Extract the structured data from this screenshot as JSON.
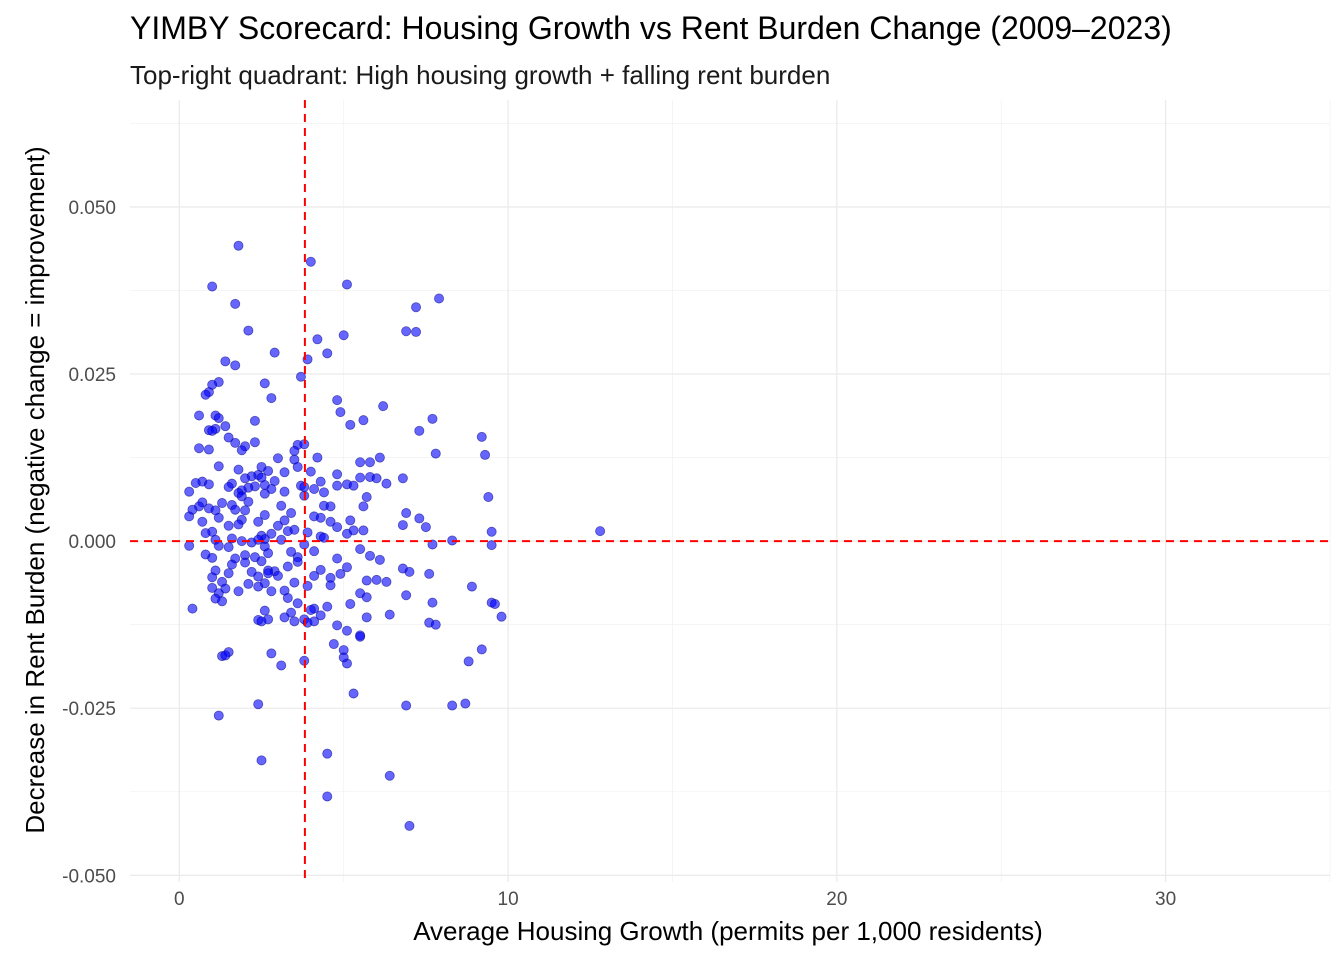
{
  "chart_data": {
    "type": "scatter",
    "title": "YIMBY Scorecard: Housing Growth vs Rent Burden Change (2009–2023)",
    "subtitle": "Top-right quadrant: High housing growth + falling rent burden",
    "xlabel": "Average Housing Growth (permits per 1,000 residents)",
    "ylabel": "Decrease in Rent Burden (negative change = improvement)",
    "xlim": [
      -1.5,
      35
    ],
    "ylim": [
      -0.051,
      0.066
    ],
    "x_ticks": [
      0,
      10,
      20,
      30
    ],
    "x_tick_labels": [
      "0",
      "10",
      "20",
      "30"
    ],
    "y_ticks": [
      -0.05,
      -0.025,
      0,
      0.025,
      0.05
    ],
    "y_tick_labels": [
      "-0.050",
      "-0.025",
      "0.000",
      "0.025",
      "0.050"
    ],
    "grid": true,
    "reference_lines": {
      "x": 3.82,
      "y": 0.0
    },
    "colors": {
      "points": "#0000ff",
      "reference_lines": "#ff0000",
      "grid": "#ebebeb"
    },
    "point_opacity": 0.6,
    "series": [
      {
        "points": [
          [
            1.8,
            0.0442
          ],
          [
            4.0,
            0.0418
          ],
          [
            1.0,
            0.0381
          ],
          [
            5.1,
            0.0384
          ],
          [
            1.7,
            0.0355
          ],
          [
            7.9,
            0.0363
          ],
          [
            7.2,
            0.035
          ],
          [
            2.1,
            0.0315
          ],
          [
            6.9,
            0.0314
          ],
          [
            7.2,
            0.0313
          ],
          [
            5.0,
            0.0308
          ],
          [
            4.2,
            0.0302
          ],
          [
            2.9,
            0.0282
          ],
          [
            4.5,
            0.0281
          ],
          [
            3.9,
            0.0272
          ],
          [
            1.4,
            0.0269
          ],
          [
            1.7,
            0.0263
          ],
          [
            3.7,
            0.0246
          ],
          [
            1.2,
            0.0238
          ],
          [
            1.0,
            0.0234
          ],
          [
            2.6,
            0.0236
          ],
          [
            0.9,
            0.0223
          ],
          [
            0.8,
            0.0219
          ],
          [
            2.8,
            0.0214
          ],
          [
            4.8,
            0.0211
          ],
          [
            6.2,
            0.0202
          ],
          [
            4.9,
            0.0193
          ],
          [
            1.1,
            0.0188
          ],
          [
            0.6,
            0.0188
          ],
          [
            7.7,
            0.0183
          ],
          [
            1.2,
            0.0184
          ],
          [
            2.3,
            0.018
          ],
          [
            5.6,
            0.0181
          ],
          [
            5.2,
            0.0174
          ],
          [
            1.4,
            0.0172
          ],
          [
            1.1,
            0.0168
          ],
          [
            0.9,
            0.0166
          ],
          [
            1.0,
            0.0165
          ],
          [
            7.3,
            0.0165
          ],
          [
            1.7,
            0.0147
          ],
          [
            9.2,
            0.0156
          ],
          [
            1.5,
            0.0155
          ],
          [
            2.0,
            0.0142
          ],
          [
            2.3,
            0.0148
          ],
          [
            3.6,
            0.0144
          ],
          [
            3.8,
            0.0145
          ],
          [
            0.6,
            0.0139
          ],
          [
            1.9,
            0.0136
          ],
          [
            0.9,
            0.0137
          ],
          [
            3.5,
            0.0135
          ],
          [
            9.3,
            0.0129
          ],
          [
            7.8,
            0.0131
          ],
          [
            4.2,
            0.0125
          ],
          [
            6.1,
            0.0125
          ],
          [
            5.5,
            0.0118
          ],
          [
            3.5,
            0.0122
          ],
          [
            3.0,
            0.0124
          ],
          [
            5.8,
            0.0118
          ],
          [
            1.2,
            0.0112
          ],
          [
            3.6,
            0.0111
          ],
          [
            2.5,
            0.0111
          ],
          [
            2.7,
            0.0105
          ],
          [
            4.0,
            0.0104
          ],
          [
            1.8,
            0.0107
          ],
          [
            3.2,
            0.0103
          ],
          [
            2.4,
            0.0099
          ],
          [
            4.8,
            0.01
          ],
          [
            2.2,
            0.0097
          ],
          [
            2.5,
            0.0095
          ],
          [
            5.8,
            0.0096
          ],
          [
            6.0,
            0.0094
          ],
          [
            6.8,
            0.0094
          ],
          [
            5.5,
            0.0095
          ],
          [
            2.0,
            0.0094
          ],
          [
            2.9,
            0.009
          ],
          [
            0.7,
            0.0089
          ],
          [
            0.5,
            0.0087
          ],
          [
            1.6,
            0.0086
          ],
          [
            0.9,
            0.0085
          ],
          [
            4.3,
            0.0089
          ],
          [
            6.3,
            0.0086
          ],
          [
            5.1,
            0.0085
          ],
          [
            3.7,
            0.0083
          ],
          [
            5.3,
            0.0083
          ],
          [
            2.6,
            0.0084
          ],
          [
            4.8,
            0.0083
          ],
          [
            3.8,
            0.0081
          ],
          [
            2.3,
            0.0082
          ],
          [
            1.5,
            0.0081
          ],
          [
            2.1,
            0.008
          ],
          [
            4.1,
            0.0078
          ],
          [
            2.8,
            0.0078
          ],
          [
            1.9,
            0.0076
          ],
          [
            1.8,
            0.0072
          ],
          [
            4.4,
            0.0073
          ],
          [
            3.2,
            0.0074
          ],
          [
            2.6,
            0.0071
          ],
          [
            0.3,
            0.0074
          ],
          [
            1.9,
            0.0067
          ],
          [
            3.8,
            0.0068
          ],
          [
            9.4,
            0.0066
          ],
          [
            5.7,
            0.0066
          ],
          [
            2.1,
            0.0059
          ],
          [
            0.7,
            0.0058
          ],
          [
            1.3,
            0.0057
          ],
          [
            1.6,
            0.0054
          ],
          [
            0.6,
            0.0052
          ],
          [
            4.4,
            0.0053
          ],
          [
            3.1,
            0.0053
          ],
          [
            4.6,
            0.0052
          ],
          [
            5.6,
            0.0052
          ],
          [
            0.9,
            0.0049
          ],
          [
            1.7,
            0.0047
          ],
          [
            0.4,
            0.0047
          ],
          [
            1.1,
            0.0046
          ],
          [
            2.0,
            0.0046
          ],
          [
            6.9,
            0.0042
          ],
          [
            3.4,
            0.0042
          ],
          [
            4.1,
            0.0037
          ],
          [
            2.6,
            0.0039
          ],
          [
            4.3,
            0.0035
          ],
          [
            1.2,
            0.0035
          ],
          [
            0.3,
            0.0037
          ],
          [
            5.2,
            0.0031
          ],
          [
            7.3,
            0.0034
          ],
          [
            3.2,
            0.0031
          ],
          [
            4.6,
            0.0029
          ],
          [
            0.7,
            0.0029
          ],
          [
            1.9,
            0.0032
          ],
          [
            2.4,
            0.0029
          ],
          [
            6.8,
            0.0024
          ],
          [
            3.0,
            0.0023
          ],
          [
            4.8,
            0.0021
          ],
          [
            7.5,
            0.0021
          ],
          [
            1.8,
            0.0025
          ],
          [
            1.5,
            0.0023
          ],
          [
            3.5,
            0.0017
          ],
          [
            5.3,
            0.0016
          ],
          [
            5.6,
            0.0016
          ],
          [
            3.3,
            0.0015
          ],
          [
            1.0,
            0.0014
          ],
          [
            5.1,
            0.0011
          ],
          [
            0.8,
            0.0012
          ],
          [
            12.8,
            0.0015
          ],
          [
            9.5,
            0.0014
          ],
          [
            3.9,
            0.0013
          ],
          [
            2.8,
            0.0011
          ],
          [
            4.3,
            0.0007
          ],
          [
            2.5,
            0.0008
          ],
          [
            4.4,
            0.0005
          ],
          [
            1.6,
            0.0004
          ],
          [
            2.6,
            0.0003
          ],
          [
            1.1,
            0.0002
          ],
          [
            8.3,
            0.0001
          ],
          [
            2.4,
            0.0002
          ],
          [
            3.1,
            0.0002
          ],
          [
            1.9,
            0.0
          ],
          [
            7.7,
            -0.0005
          ],
          [
            9.5,
            -0.0006
          ],
          [
            0.3,
            -0.0007
          ],
          [
            1.2,
            -0.0007
          ],
          [
            2.2,
            -0.0002
          ],
          [
            3.8,
            -0.0005
          ],
          [
            1.5,
            -0.0009
          ],
          [
            2.6,
            -0.0008
          ],
          [
            5.5,
            -0.0012
          ],
          [
            4.1,
            -0.0015
          ],
          [
            3.4,
            -0.0016
          ],
          [
            2.7,
            -0.0018
          ],
          [
            0.8,
            -0.002
          ],
          [
            2.0,
            -0.0021
          ],
          [
            5.8,
            -0.0022
          ],
          [
            3.6,
            -0.0024
          ],
          [
            2.3,
            -0.0024
          ],
          [
            1.7,
            -0.0026
          ],
          [
            1.0,
            -0.0025
          ],
          [
            4.8,
            -0.0026
          ],
          [
            6.1,
            -0.0028
          ],
          [
            2.5,
            -0.003
          ],
          [
            3.6,
            -0.0031
          ],
          [
            2.0,
            -0.0032
          ],
          [
            1.6,
            -0.0035
          ],
          [
            3.3,
            -0.0038
          ],
          [
            5.1,
            -0.0039
          ],
          [
            6.8,
            -0.0041
          ],
          [
            4.3,
            -0.0043
          ],
          [
            2.7,
            -0.0044
          ],
          [
            1.1,
            -0.0044
          ],
          [
            2.9,
            -0.0045
          ],
          [
            2.2,
            -0.0046
          ],
          [
            7.0,
            -0.0046
          ],
          [
            1.5,
            -0.0048
          ],
          [
            2.7,
            -0.0048
          ],
          [
            4.9,
            -0.0049
          ],
          [
            7.6,
            -0.0049
          ],
          [
            1.0,
            -0.0054
          ],
          [
            2.4,
            -0.0053
          ],
          [
            3.0,
            -0.0052
          ],
          [
            4.1,
            -0.0052
          ],
          [
            4.6,
            -0.0055
          ],
          [
            6.0,
            -0.0058
          ],
          [
            1.3,
            -0.0061
          ],
          [
            3.5,
            -0.0062
          ],
          [
            5.7,
            -0.0059
          ],
          [
            6.3,
            -0.0061
          ],
          [
            2.1,
            -0.0064
          ],
          [
            2.6,
            -0.0063
          ],
          [
            4.6,
            -0.0066
          ],
          [
            3.9,
            -0.0067
          ],
          [
            2.4,
            -0.0068
          ],
          [
            1.0,
            -0.007
          ],
          [
            1.4,
            -0.0071
          ],
          [
            8.9,
            -0.0068
          ],
          [
            3.2,
            -0.0074
          ],
          [
            1.8,
            -0.0075
          ],
          [
            2.8,
            -0.0075
          ],
          [
            5.5,
            -0.0078
          ],
          [
            1.2,
            -0.0078
          ],
          [
            6.9,
            -0.0081
          ],
          [
            5.7,
            -0.0084
          ],
          [
            1.1,
            -0.0086
          ],
          [
            3.3,
            -0.0085
          ],
          [
            1.3,
            -0.009
          ],
          [
            3.6,
            -0.0093
          ],
          [
            7.7,
            -0.0092
          ],
          [
            5.2,
            -0.0094
          ],
          [
            9.5,
            -0.0092
          ],
          [
            9.6,
            -0.0094
          ],
          [
            4.5,
            -0.0098
          ],
          [
            4.1,
            -0.0101
          ],
          [
            4.0,
            -0.0103
          ],
          [
            0.4,
            -0.0101
          ],
          [
            2.6,
            -0.0104
          ],
          [
            3.4,
            -0.0107
          ],
          [
            6.4,
            -0.011
          ],
          [
            4.3,
            -0.0111
          ],
          [
            5.7,
            -0.0114
          ],
          [
            3.2,
            -0.0114
          ],
          [
            9.8,
            -0.0113
          ],
          [
            2.7,
            -0.0117
          ],
          [
            3.8,
            -0.0117
          ],
          [
            2.4,
            -0.0118
          ],
          [
            2.5,
            -0.012
          ],
          [
            3.5,
            -0.012
          ],
          [
            4.1,
            -0.012
          ],
          [
            3.9,
            -0.0122
          ],
          [
            7.6,
            -0.0122
          ],
          [
            7.8,
            -0.0125
          ],
          [
            4.8,
            -0.0126
          ],
          [
            5.1,
            -0.0134
          ],
          [
            5.5,
            -0.0141
          ],
          [
            5.5,
            -0.0143
          ],
          [
            4.7,
            -0.0154
          ],
          [
            9.2,
            -0.0162
          ],
          [
            5.0,
            -0.0163
          ],
          [
            1.5,
            -0.0166
          ],
          [
            1.3,
            -0.0172
          ],
          [
            1.4,
            -0.0171
          ],
          [
            2.8,
            -0.0168
          ],
          [
            3.8,
            -0.0179
          ],
          [
            5.1,
            -0.0183
          ],
          [
            5.0,
            -0.0174
          ],
          [
            8.8,
            -0.018
          ],
          [
            3.1,
            -0.0186
          ],
          [
            5.3,
            -0.0228
          ],
          [
            8.3,
            -0.0246
          ],
          [
            8.7,
            -0.0243
          ],
          [
            2.4,
            -0.0244
          ],
          [
            6.9,
            -0.0246
          ],
          [
            1.2,
            -0.0261
          ],
          [
            2.5,
            -0.0328
          ],
          [
            4.5,
            -0.0318
          ],
          [
            6.4,
            -0.0351
          ],
          [
            4.5,
            -0.0382
          ],
          [
            7.0,
            -0.0426
          ]
        ]
      }
    ]
  }
}
